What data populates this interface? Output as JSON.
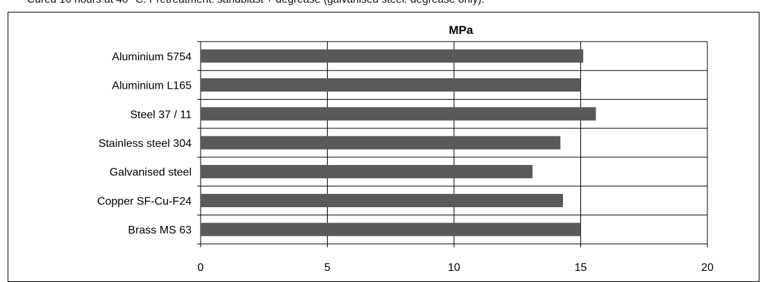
{
  "caption": "Cured 16 hours at 40 °C. Pretreatment: sandblast + degrease (galvanised steel: degrease only).",
  "chart_data": {
    "type": "bar",
    "orientation": "horizontal",
    "title": "MPa",
    "xlabel": "",
    "ylabel": "",
    "categories": [
      "Aluminium 5754",
      "Aluminium L165",
      "Steel 37 / 11",
      "Stainless steel 304",
      "Galvanised steel",
      "Copper SF-Cu-F24",
      "Brass MS 63"
    ],
    "values": [
      15.1,
      15.0,
      15.6,
      14.2,
      13.1,
      14.3,
      15.0
    ],
    "xlim": [
      0,
      20
    ],
    "xticks": [
      0,
      5,
      10,
      15,
      20
    ],
    "grid": true,
    "legend": "none",
    "bar_color": "#595959"
  }
}
